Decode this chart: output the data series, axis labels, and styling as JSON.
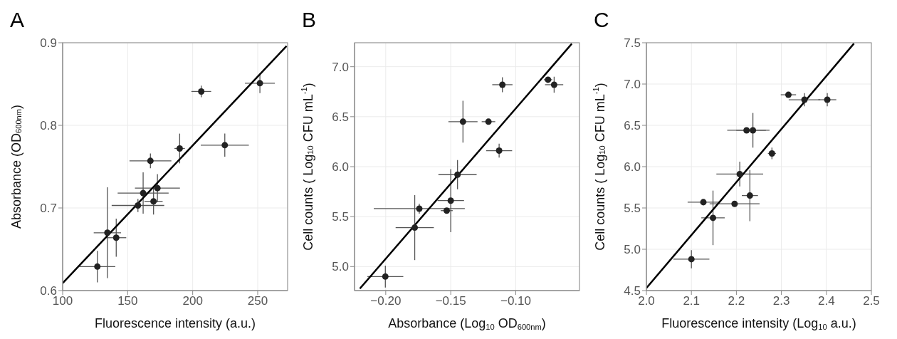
{
  "chart_data": [
    {
      "type": "scatter",
      "title": "A",
      "xlabel": "Fluorescence intensity (a.u.)",
      "ylabel": "Absorbance (OD$_{600nm}$)",
      "xlim": [
        100,
        273
      ],
      "ylim": [
        0.6,
        0.9
      ],
      "xticks": [
        100,
        150,
        200,
        250
      ],
      "yticks": [
        0.6,
        0.7,
        0.8,
        0.9
      ],
      "grid": true,
      "series": [
        {
          "marker": "circle",
          "color": "#222222",
          "x": [
            126.7,
            134.4,
            141.2,
            157.9,
            161.9,
            167.5,
            169.9,
            172.9,
            190.0,
            206.6,
            224.7,
            251.7
          ],
          "values": [
            0.629,
            0.67,
            0.664,
            0.703,
            0.718,
            0.757,
            0.708,
            0.724,
            0.772,
            0.841,
            0.776,
            0.851
          ],
          "errors": [
            0.019,
            0.055,
            0.023,
            0.008,
            0.025,
            0.009,
            0.016,
            0.017,
            0.018,
            0.007,
            0.014,
            0.012
          ],
          "xerrors": [
            13.8,
            10.5,
            7.7,
            20.2,
            19.6,
            16.1,
            7,
            17.3,
            4,
            7.6,
            18.5,
            11.5
          ]
        },
        {
          "type": "line",
          "color": "#000000",
          "x": [
            100,
            272.2
          ],
          "values": [
            0.609,
            0.896
          ]
        }
      ]
    },
    {
      "type": "scatter",
      "title": "B",
      "xlabel": "Absorbance (Log$_{10}$ OD$_{600nm}$)",
      "ylabel": "Cell counts ( Log$_{10}$ CFU mL$^{-1}$)",
      "xlim": [
        -0.224,
        -0.051
      ],
      "ylim": [
        4.76,
        7.24
      ],
      "xticks": [
        {
          "value": -0.2,
          "label": "−0.20"
        },
        {
          "value": -0.15,
          "label": "−0.15"
        },
        {
          "value": -0.1,
          "label": "−0.10"
        }
      ],
      "yticks": [
        {
          "value": 5,
          "label": "5.0"
        },
        5.5,
        {
          "value": 6,
          "label": "6.0"
        },
        6.5,
        {
          "value": 7,
          "label": "7.0"
        }
      ],
      "grid": true,
      "series": [
        {
          "marker": "circle",
          "color": "#222222",
          "x": [
            -0.2003,
            -0.1777,
            -0.1742,
            -0.1531,
            -0.15,
            -0.1448,
            -0.1406,
            -0.121,
            -0.1128,
            -0.1103,
            -0.0752,
            -0.0705
          ],
          "values": [
            4.9,
            5.39,
            5.58,
            5.56,
            5.66,
            5.92,
            6.45,
            6.45,
            6.16,
            6.82,
            6.87,
            6.82
          ],
          "errors": [
            0.11,
            0.325,
            0.05,
            0.02,
            0.315,
            0.146,
            0.21,
            0.02,
            0.07,
            0.075,
            0.02,
            0.08
          ],
          "xerrors": [
            0.0138,
            0.0147,
            0.035,
            0.0046,
            0.0102,
            0.0147,
            0.0112,
            0.0052,
            0.01,
            0.0078,
            0.0032,
            0.007
          ]
        },
        {
          "type": "line",
          "color": "#000000",
          "x": [
            -0.2199,
            -0.0569
          ],
          "values": [
            4.78,
            7.23
          ]
        }
      ]
    },
    {
      "type": "scatter",
      "title": "C",
      "xlabel": "Fluorescence intensity (Log$_{10}$ a.u.)",
      "ylabel": "Cell counts ( Log$_{10}$ CFU mL$^{-1}$)",
      "xlim": [
        2.0,
        2.5
      ],
      "ylim": [
        4.5,
        7.5
      ],
      "xticks": [
        {
          "value": 2,
          "label": "2.0"
        },
        2.1,
        2.2,
        2.3,
        2.4,
        2.5
      ],
      "yticks": [
        4.5,
        {
          "value": 5,
          "label": "5.0"
        },
        5.5,
        {
          "value": 6,
          "label": "6.0"
        },
        6.5,
        {
          "value": 7,
          "label": "7.0"
        },
        7.5
      ],
      "grid": true,
      "series": [
        {
          "marker": "circle",
          "color": "#222222",
          "x": [
            2.1,
            2.1266,
            2.148,
            2.196,
            2.2075,
            2.23,
            2.2226,
            2.2367,
            2.279,
            2.3156,
            2.3513,
            2.402
          ],
          "values": [
            4.88,
            5.57,
            5.38,
            5.55,
            5.91,
            5.65,
            6.44,
            6.44,
            6.16,
            6.87,
            6.81,
            6.81
          ],
          "errors": [
            0.11,
            0.03,
            0.33,
            0.02,
            0.15,
            0.31,
            0.02,
            0.21,
            0.07,
            0.02,
            0.08,
            0.08
          ],
          "xerrors": [
            0.04,
            0.035,
            0.026,
            0.0555,
            0.052,
            0.018,
            0.043,
            0.037,
            0.009,
            0.017,
            0.035,
            0.02
          ]
        },
        {
          "type": "line",
          "color": "#000000",
          "x": [
            2.0,
            2.4613
          ],
          "values": [
            4.53,
            7.49
          ]
        }
      ]
    }
  ]
}
